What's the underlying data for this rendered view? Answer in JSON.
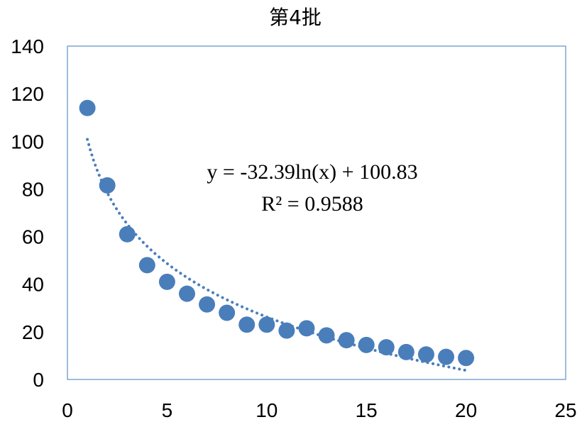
{
  "chart_data": {
    "type": "scatter",
    "title": "第4批",
    "xlabel": "",
    "ylabel": "",
    "xlim": [
      0,
      25
    ],
    "ylim": [
      0,
      140
    ],
    "xticks": [
      0,
      5,
      10,
      15,
      20,
      25
    ],
    "yticks": [
      0,
      20,
      40,
      60,
      80,
      100,
      120,
      140
    ],
    "grid": false,
    "series": [
      {
        "x": [
          1,
          2,
          3,
          4,
          5,
          6,
          7,
          8,
          9,
          10,
          11,
          12,
          13,
          14,
          15,
          16,
          17,
          18,
          19,
          20
        ],
        "values": [
          114,
          81.5,
          61,
          48,
          41,
          36,
          31.5,
          28,
          23,
          23,
          20.5,
          21.5,
          18.5,
          16.5,
          14.5,
          13.5,
          11.5,
          10.5,
          9.5,
          9
        ],
        "color": "#4a7ebb"
      }
    ],
    "trendline": {
      "type": "logarithmic",
      "a": -32.39,
      "b": 100.83,
      "x_range": [
        1,
        20
      ],
      "style": "dotted",
      "color": "#4a7ebb"
    },
    "annotations": [
      "y = -32.39ln(x) + 100.83",
      "R² = 0.9588"
    ],
    "plot_border_color": "#7ea6cf"
  }
}
